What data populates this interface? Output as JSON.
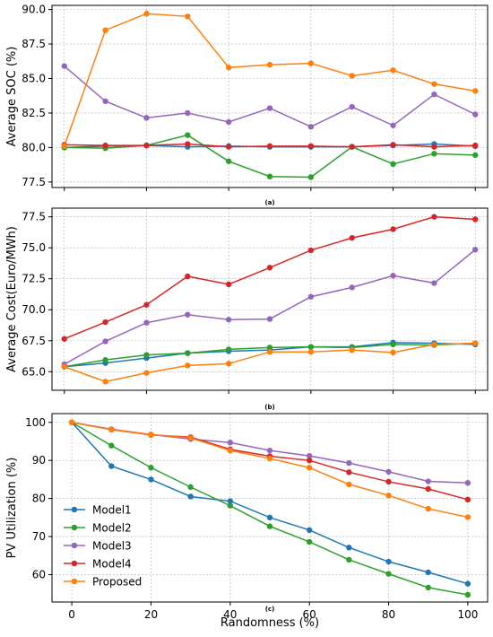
{
  "chart_data": [
    {
      "type": "line",
      "panel_label": "(a)",
      "xlabel": "",
      "ylabel": "Average SOC (%)",
      "xlim": [
        -3,
        103
      ],
      "ylim": [
        77.1,
        90.3
      ],
      "x_ticks": [],
      "y_ticks": [
        "77.5",
        "80.0",
        "82.5",
        "85.0",
        "87.5",
        "90.0"
      ],
      "grid": true,
      "x": [
        0,
        10,
        20,
        30,
        40,
        50,
        60,
        70,
        80,
        90,
        100
      ],
      "series": [
        {
          "name": "Model1",
          "color": "#1f77b4",
          "values": [
            80.0,
            80.1,
            80.15,
            80.05,
            80.1,
            80.05,
            80.05,
            80.05,
            80.15,
            80.25,
            80.1
          ]
        },
        {
          "name": "Model2",
          "color": "#2ca02c",
          "values": [
            80.0,
            79.95,
            80.15,
            80.9,
            79.0,
            77.9,
            77.85,
            80.05,
            78.8,
            79.55,
            79.45
          ]
        },
        {
          "name": "Model3",
          "color": "#9467bd",
          "values": [
            85.9,
            83.35,
            82.15,
            82.5,
            81.85,
            82.85,
            81.5,
            82.95,
            81.6,
            83.85,
            82.4
          ]
        },
        {
          "name": "Model4",
          "color": "#d62728",
          "values": [
            80.2,
            80.15,
            80.15,
            80.25,
            80.05,
            80.1,
            80.1,
            80.05,
            80.2,
            80.05,
            80.15
          ]
        },
        {
          "name": "Proposed",
          "color": "#ff7f0e",
          "values": [
            80.1,
            88.5,
            89.7,
            89.5,
            85.8,
            86.0,
            86.1,
            85.2,
            85.6,
            84.6,
            84.1
          ]
        }
      ]
    },
    {
      "type": "line",
      "panel_label": "(b)",
      "xlabel": "",
      "ylabel": "Average Cost(Euro/MWh)",
      "xlim": [
        -3,
        103
      ],
      "ylim": [
        63.5,
        78.2
      ],
      "x_ticks": [],
      "y_ticks": [
        "65.0",
        "67.5",
        "70.0",
        "72.5",
        "75.0",
        "77.5"
      ],
      "grid": true,
      "x": [
        0,
        10,
        20,
        30,
        40,
        50,
        60,
        70,
        80,
        90,
        100
      ],
      "series": [
        {
          "name": "Model1",
          "color": "#1f77b4",
          "values": [
            65.4,
            65.7,
            66.1,
            66.5,
            66.65,
            66.75,
            67.0,
            67.0,
            67.35,
            67.3,
            67.2
          ]
        },
        {
          "name": "Model2",
          "color": "#2ca02c",
          "values": [
            65.4,
            65.95,
            66.35,
            66.5,
            66.8,
            66.95,
            67.0,
            66.95,
            67.2,
            67.15,
            67.3
          ]
        },
        {
          "name": "Model3",
          "color": "#9467bd",
          "values": [
            65.6,
            67.45,
            68.95,
            69.6,
            69.2,
            69.25,
            71.05,
            71.8,
            72.75,
            72.15,
            74.85
          ]
        },
        {
          "name": "Model4",
          "color": "#d62728",
          "values": [
            67.65,
            69.0,
            70.4,
            72.7,
            72.05,
            73.4,
            74.8,
            75.8,
            76.5,
            77.5,
            77.3
          ]
        },
        {
          "name": "Proposed",
          "color": "#ff7f0e",
          "values": [
            65.4,
            64.2,
            64.9,
            65.5,
            65.65,
            66.6,
            66.6,
            66.75,
            66.55,
            67.2,
            67.3
          ]
        }
      ]
    },
    {
      "type": "line",
      "panel_label": "(c)",
      "xlabel": "Randomness (%)",
      "ylabel": "PV Utilization (%)",
      "xlim": [
        -5,
        105
      ],
      "ylim": [
        52.8,
        102.3
      ],
      "x_ticks": [
        "0",
        "20",
        "40",
        "60",
        "80",
        "100"
      ],
      "y_ticks": [
        "60",
        "70",
        "80",
        "90",
        "100"
      ],
      "grid": true,
      "legend_position": "lower-left",
      "x": [
        0,
        10,
        20,
        30,
        40,
        50,
        60,
        70,
        80,
        90,
        100
      ],
      "series": [
        {
          "name": "Model1",
          "color": "#1f77b4",
          "values": [
            100,
            88.5,
            85.0,
            80.5,
            79.3,
            75.0,
            71.7,
            67.1,
            63.4,
            60.6,
            57.6
          ]
        },
        {
          "name": "Model2",
          "color": "#2ca02c",
          "values": [
            100,
            93.9,
            88.1,
            83.0,
            78.1,
            72.7,
            68.6,
            63.9,
            60.2,
            56.6,
            54.7
          ]
        },
        {
          "name": "Model3",
          "color": "#9467bd",
          "values": [
            100,
            98.2,
            96.8,
            95.6,
            94.7,
            92.6,
            91.2,
            89.3,
            87.0,
            84.5,
            84.1
          ]
        },
        {
          "name": "Model4",
          "color": "#d62728",
          "values": [
            100,
            98.1,
            96.7,
            96.1,
            92.9,
            91.1,
            90.0,
            86.9,
            84.4,
            82.5,
            79.7
          ]
        },
        {
          "name": "Proposed",
          "color": "#ff7f0e",
          "values": [
            100,
            98.1,
            96.8,
            95.9,
            92.6,
            90.5,
            88.1,
            83.7,
            80.8,
            77.3,
            75.1
          ]
        }
      ]
    }
  ]
}
